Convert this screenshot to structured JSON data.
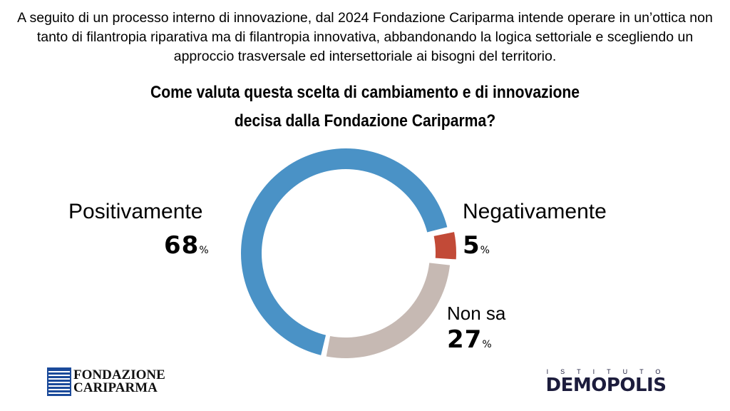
{
  "intro": "A seguito di un processo interno di innovazione, dal 2024 Fondazione Cariparma intende operare in un’ottica non tanto di filantropia riparativa ma di filantropia innovativa, abbandonando la logica settoriale e scegliendo un approccio trasversale ed intersettoriale ai bisogni del territorio.",
  "question_line1": "Come valuta questa scelta di cambiamento e di innovazione",
  "question_line2": "decisa dalla Fondazione Cariparma?",
  "chart_data": {
    "type": "pie",
    "donut": true,
    "title": "Come valuta questa scelta di cambiamento e di innovazione decisa dalla Fondazione Cariparma?",
    "slices": [
      {
        "label": "Negativamente",
        "value": 5,
        "display": "5",
        "color": "#c24a37"
      },
      {
        "label": "Non sa",
        "value": 27,
        "display": "27",
        "color": "#c6b9b3"
      },
      {
        "label": "Positivamente",
        "value": 68,
        "display": "68",
        "color": "#4a92c6"
      }
    ],
    "unit": "%"
  },
  "logos": {
    "left": "FONDAZIONE CARIPARMA",
    "right_top": "ISTITUTO",
    "right_main": "DEMOPOLIS"
  }
}
